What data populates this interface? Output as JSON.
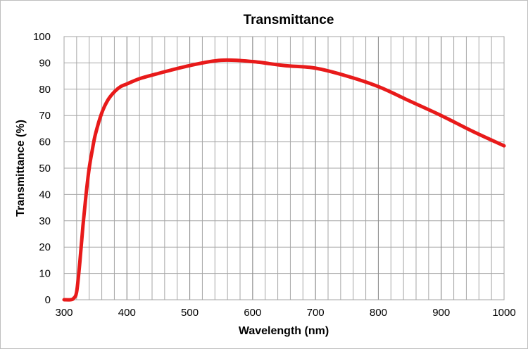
{
  "chart_data": {
    "type": "line",
    "title": "Transmittance",
    "xlabel": "Wavelength (nm)",
    "ylabel": "Transmittance (%)",
    "xlim": [
      300,
      1000
    ],
    "ylim": [
      0,
      100
    ],
    "x_major_ticks": [
      300,
      400,
      500,
      600,
      700,
      800,
      900,
      1000
    ],
    "y_major_ticks": [
      0,
      10,
      20,
      30,
      40,
      50,
      60,
      70,
      80,
      90,
      100
    ],
    "x_minor_step": 20,
    "grid": true,
    "line_color": "#e81a1a",
    "grid_color": "#a6a6a6",
    "series": [
      {
        "name": "",
        "x": [
          300,
          310,
          315,
          320,
          325,
          330,
          335,
          340,
          345,
          350,
          360,
          370,
          380,
          390,
          400,
          420,
          450,
          500,
          550,
          600,
          650,
          700,
          750,
          800,
          850,
          900,
          950,
          1000
        ],
        "y": [
          0,
          0,
          0.5,
          3,
          14,
          28,
          40,
          50,
          57,
          63,
          71,
          76,
          79,
          81,
          82,
          84,
          86,
          89,
          91,
          90.5,
          89,
          88,
          85,
          81,
          75.5,
          70,
          64,
          58.5
        ]
      }
    ]
  }
}
